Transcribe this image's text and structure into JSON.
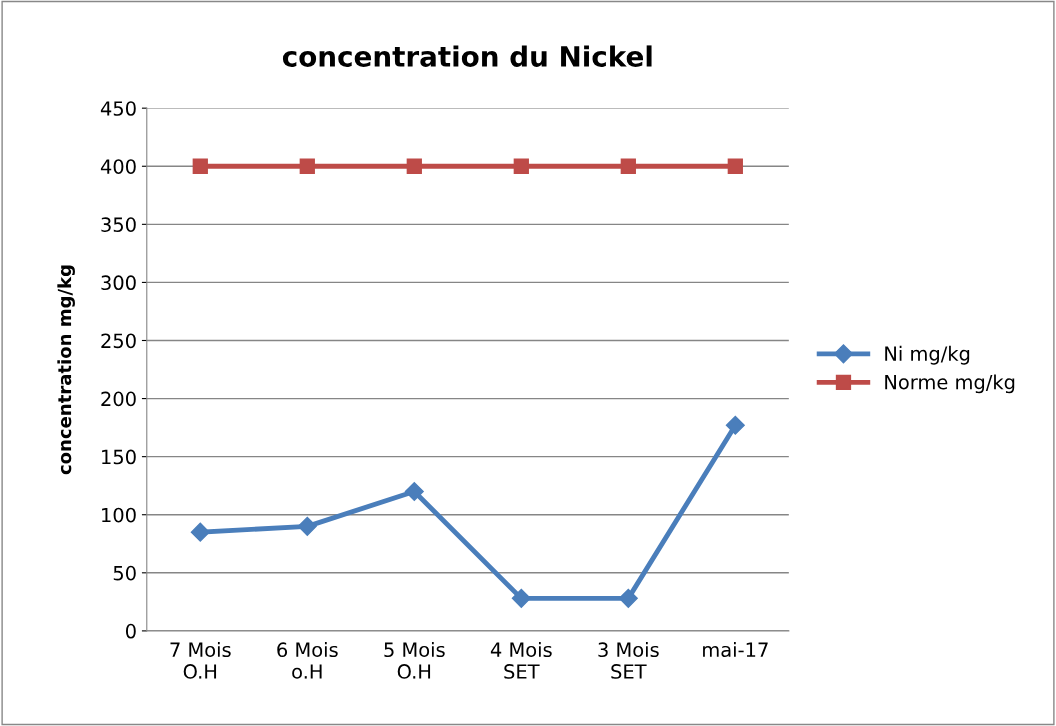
{
  "chart_data": {
    "type": "line",
    "title": "concentration du Nickel",
    "ylabel": "concentration mg/kg",
    "categories": [
      "7 Mois\nO.H",
      "6 Mois\no.H",
      "5 Mois\nO.H",
      "4 Mois\nSET",
      "3 Mois\nSET",
      "mai-17"
    ],
    "series": [
      {
        "name": "Ni mg/kg",
        "color": "#4a7ebb",
        "marker": "diamond",
        "values": [
          85,
          90,
          120,
          28,
          28,
          177
        ]
      },
      {
        "name": "Norme mg/kg",
        "color": "#be4b48",
        "marker": "square",
        "values": [
          400,
          400,
          400,
          400,
          400,
          400
        ]
      }
    ],
    "ylim": [
      0,
      450
    ],
    "yticks": [
      0,
      50,
      100,
      150,
      200,
      250,
      300,
      350,
      400,
      450
    ],
    "grid": "y",
    "legend": "right",
    "line_style": "solid"
  }
}
